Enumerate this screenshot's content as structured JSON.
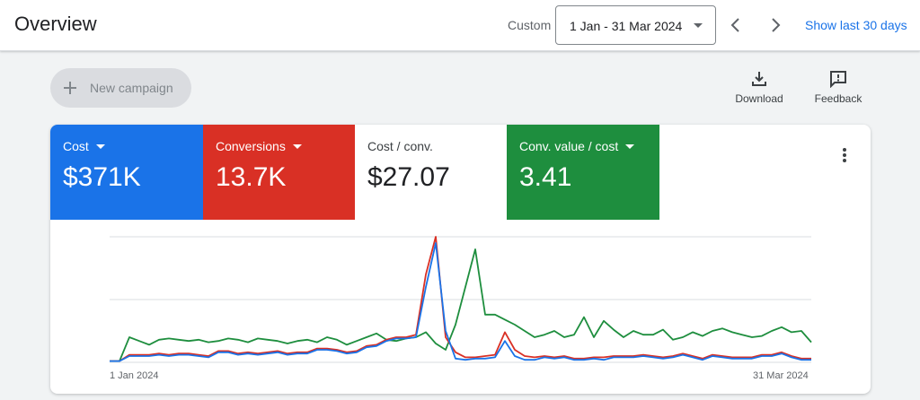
{
  "header": {
    "title": "Overview",
    "custom_label": "Custom",
    "date_range": "1 Jan - 31 Mar 2024",
    "show_last": "Show last 30 days",
    "prev_icon": "chevron-left-icon",
    "next_icon": "chevron-right-icon"
  },
  "toolbar": {
    "new_campaign": "New campaign",
    "download": "Download",
    "feedback": "Feedback"
  },
  "metrics": [
    {
      "label": "Cost",
      "value": "$371K",
      "color": "#1a73e8",
      "dropdown": true
    },
    {
      "label": "Conversions",
      "value": "13.7K",
      "color": "#d93025",
      "dropdown": true
    },
    {
      "label": "Cost / conv.",
      "value": "$27.07",
      "color": "#ffffff",
      "dropdown": false
    },
    {
      "label": "Conv. value / cost",
      "value": "3.41",
      "color": "#1e8e3e",
      "dropdown": true
    }
  ],
  "chart_data": {
    "type": "line",
    "x_start_label": "1 Jan 2024",
    "x_end_label": "31 Mar 2024",
    "ylim": [
      0,
      100
    ],
    "grid": true,
    "series": [
      {
        "color": "#1a73e8",
        "values": [
          1,
          1,
          5,
          5,
          5,
          6,
          5,
          6,
          6,
          5,
          4,
          8,
          8,
          6,
          7,
          6,
          7,
          8,
          6,
          7,
          7,
          10,
          10,
          9,
          7,
          8,
          12,
          13,
          17,
          19,
          19,
          20,
          60,
          95,
          25,
          3,
          2,
          3,
          3,
          4,
          17,
          5,
          2,
          2,
          4,
          3,
          4,
          2,
          2,
          3,
          2,
          4,
          4,
          4,
          5,
          4,
          3,
          4,
          6,
          4,
          2,
          5,
          4,
          3,
          3,
          3,
          5,
          5,
          7,
          4,
          2,
          2
        ]
      },
      {
        "color": "#d93025",
        "values": [
          1,
          1,
          6,
          6,
          6,
          7,
          6,
          7,
          7,
          6,
          5,
          9,
          9,
          7,
          8,
          7,
          8,
          9,
          7,
          8,
          8,
          11,
          11,
          10,
          8,
          9,
          13,
          14,
          18,
          20,
          20,
          22,
          70,
          100,
          20,
          8,
          4,
          4,
          5,
          6,
          24,
          10,
          5,
          4,
          5,
          4,
          5,
          3,
          3,
          4,
          4,
          5,
          5,
          5,
          6,
          5,
          4,
          5,
          7,
          5,
          3,
          6,
          5,
          4,
          4,
          4,
          6,
          6,
          8,
          5,
          3,
          3
        ]
      },
      {
        "color": "#1e8e3e",
        "values": [
          1,
          1,
          20,
          17,
          14,
          18,
          19,
          18,
          17,
          18,
          16,
          17,
          19,
          18,
          16,
          19,
          18,
          17,
          15,
          17,
          18,
          16,
          20,
          18,
          14,
          17,
          20,
          23,
          18,
          17,
          19,
          20,
          24,
          15,
          10,
          30,
          60,
          90,
          38,
          38,
          34,
          30,
          25,
          20,
          22,
          25,
          20,
          22,
          36,
          20,
          33,
          26,
          20,
          25,
          22,
          22,
          26,
          18,
          20,
          24,
          21,
          25,
          27,
          24,
          22,
          20,
          21,
          25,
          28,
          24,
          25,
          16
        ]
      }
    ]
  }
}
